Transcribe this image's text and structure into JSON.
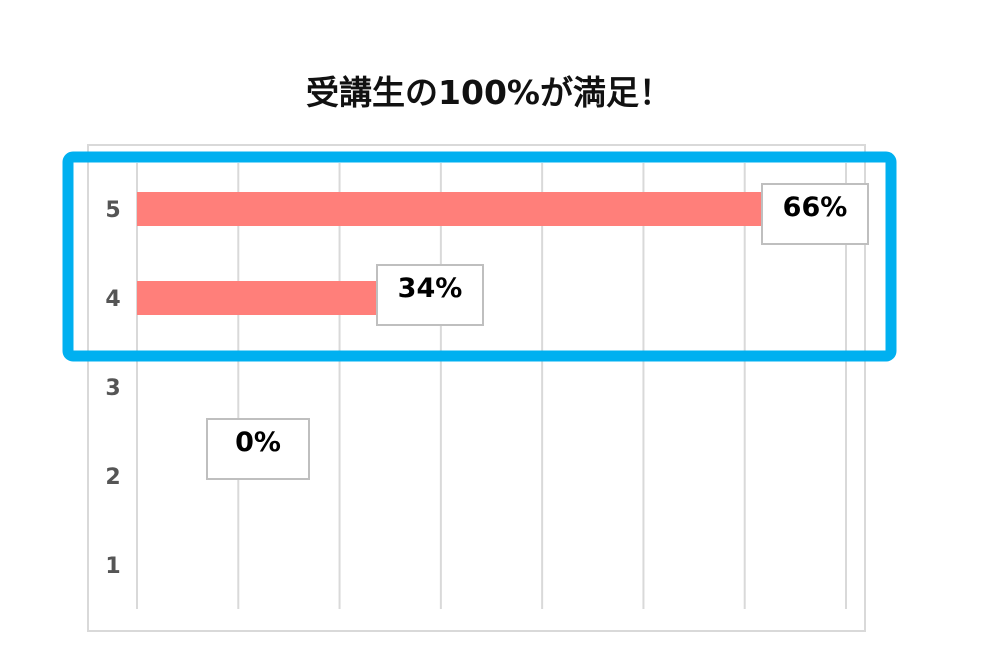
{
  "chart_data": {
    "type": "bar",
    "orientation": "horizontal",
    "title": "受講生の100%が満足！",
    "categories": [
      "5",
      "4",
      "3",
      "2",
      "1"
    ],
    "values": [
      66,
      34,
      0,
      null,
      null
    ],
    "data_labels": [
      "66%",
      "34%",
      "0%",
      null,
      null
    ],
    "xlim": [
      0,
      70
    ],
    "grid": true,
    "bar_color": "#ff7f7a",
    "highlight": {
      "categories": [
        "5",
        "4"
      ],
      "color": "#00b0f0"
    }
  }
}
